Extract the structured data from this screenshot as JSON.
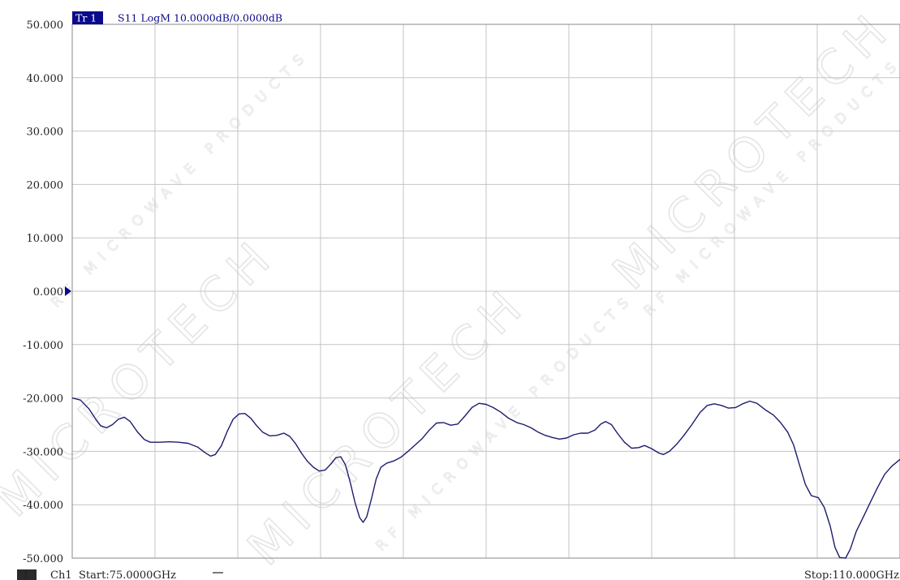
{
  "header": {
    "trace_tag": "Tr 1",
    "trace_info": "S11 LogM 10.0000dB/0.0000dB"
  },
  "footer": {
    "channel_number": "1",
    "channel_label": "Ch1",
    "start_label": "Start:75.0000GHz",
    "stop_label": "Stop:110.000GHz"
  },
  "watermark": {
    "main": "MICROTECH",
    "sub": "RF MICROWAVE PRODUCTS"
  },
  "colors": {
    "trace": "#1c1c6e",
    "grid": "#c4c4c4",
    "header_tag_bg": "#0a0a8c",
    "header_text": "#0a0a8c",
    "reference_marker": "#0a0a8c"
  },
  "chart_data": {
    "type": "line",
    "title": "",
    "xlabel": "",
    "ylabel": "",
    "x_unit": "GHz",
    "xlim": [
      75,
      110
    ],
    "ylim": [
      -50,
      50
    ],
    "y_ticks": [
      50,
      40,
      30,
      20,
      10,
      0,
      -10,
      -20,
      -30,
      -40,
      -50
    ],
    "y_tick_labels": [
      "50.000",
      "40.000",
      "30.000",
      "20.000",
      "10.000",
      "0.000",
      "-10.000",
      "-20.000",
      "-30.000",
      "-40.000",
      "-50.000"
    ],
    "x_divisions": 10,
    "grid": true,
    "reference_level": 0,
    "series": [
      {
        "values": [
          [
            75.0,
            -20.0
          ],
          [
            75.35,
            -20.4
          ],
          [
            75.7,
            -22.0
          ],
          [
            76.0,
            -24.0
          ],
          [
            76.2,
            -25.2
          ],
          [
            76.45,
            -25.6
          ],
          [
            76.7,
            -25.0
          ],
          [
            76.95,
            -24.0
          ],
          [
            77.2,
            -23.6
          ],
          [
            77.45,
            -24.4
          ],
          [
            77.75,
            -26.3
          ],
          [
            78.05,
            -27.8
          ],
          [
            78.3,
            -28.3
          ],
          [
            78.7,
            -28.3
          ],
          [
            79.1,
            -28.2
          ],
          [
            79.5,
            -28.3
          ],
          [
            79.9,
            -28.5
          ],
          [
            80.3,
            -29.2
          ],
          [
            80.6,
            -30.2
          ],
          [
            80.85,
            -30.9
          ],
          [
            81.05,
            -30.6
          ],
          [
            81.3,
            -29.0
          ],
          [
            81.55,
            -26.3
          ],
          [
            81.8,
            -24.0
          ],
          [
            82.05,
            -23.0
          ],
          [
            82.3,
            -22.9
          ],
          [
            82.55,
            -23.8
          ],
          [
            82.8,
            -25.2
          ],
          [
            83.05,
            -26.4
          ],
          [
            83.35,
            -27.1
          ],
          [
            83.65,
            -27.0
          ],
          [
            83.95,
            -26.6
          ],
          [
            84.2,
            -27.2
          ],
          [
            84.45,
            -28.6
          ],
          [
            84.7,
            -30.4
          ],
          [
            84.95,
            -31.9
          ],
          [
            85.2,
            -33.0
          ],
          [
            85.45,
            -33.7
          ],
          [
            85.7,
            -33.5
          ],
          [
            85.95,
            -32.3
          ],
          [
            86.15,
            -31.2
          ],
          [
            86.35,
            -31.0
          ],
          [
            86.55,
            -32.5
          ],
          [
            86.75,
            -35.7
          ],
          [
            86.95,
            -39.5
          ],
          [
            87.15,
            -42.4
          ],
          [
            87.3,
            -43.3
          ],
          [
            87.45,
            -42.3
          ],
          [
            87.65,
            -38.9
          ],
          [
            87.85,
            -35.2
          ],
          [
            88.05,
            -33.0
          ],
          [
            88.3,
            -32.2
          ],
          [
            88.6,
            -31.8
          ],
          [
            88.9,
            -31.1
          ],
          [
            89.2,
            -30.0
          ],
          [
            89.5,
            -28.8
          ],
          [
            89.8,
            -27.6
          ],
          [
            90.1,
            -26.0
          ],
          [
            90.4,
            -24.7
          ],
          [
            90.7,
            -24.6
          ],
          [
            91.0,
            -25.1
          ],
          [
            91.3,
            -24.9
          ],
          [
            91.6,
            -23.4
          ],
          [
            91.9,
            -21.8
          ],
          [
            92.2,
            -21.0
          ],
          [
            92.5,
            -21.2
          ],
          [
            92.8,
            -21.8
          ],
          [
            93.1,
            -22.6
          ],
          [
            93.45,
            -23.8
          ],
          [
            93.8,
            -24.6
          ],
          [
            94.1,
            -25.0
          ],
          [
            94.4,
            -25.6
          ],
          [
            94.7,
            -26.4
          ],
          [
            95.0,
            -27.0
          ],
          [
            95.3,
            -27.4
          ],
          [
            95.6,
            -27.7
          ],
          [
            95.9,
            -27.5
          ],
          [
            96.2,
            -26.9
          ],
          [
            96.5,
            -26.6
          ],
          [
            96.8,
            -26.6
          ],
          [
            97.1,
            -26.0
          ],
          [
            97.35,
            -24.9
          ],
          [
            97.55,
            -24.4
          ],
          [
            97.8,
            -25.0
          ],
          [
            98.05,
            -26.6
          ],
          [
            98.35,
            -28.3
          ],
          [
            98.65,
            -29.4
          ],
          [
            98.95,
            -29.3
          ],
          [
            99.2,
            -28.9
          ],
          [
            99.5,
            -29.5
          ],
          [
            99.8,
            -30.3
          ],
          [
            100.0,
            -30.6
          ],
          [
            100.25,
            -30.0
          ],
          [
            100.55,
            -28.7
          ],
          [
            100.85,
            -27.1
          ],
          [
            101.2,
            -25.0
          ],
          [
            101.55,
            -22.7
          ],
          [
            101.85,
            -21.4
          ],
          [
            102.15,
            -21.1
          ],
          [
            102.45,
            -21.4
          ],
          [
            102.75,
            -21.9
          ],
          [
            103.05,
            -21.8
          ],
          [
            103.35,
            -21.1
          ],
          [
            103.65,
            -20.6
          ],
          [
            103.95,
            -21.0
          ],
          [
            104.3,
            -22.2
          ],
          [
            104.65,
            -23.2
          ],
          [
            104.95,
            -24.6
          ],
          [
            105.25,
            -26.4
          ],
          [
            105.5,
            -28.8
          ],
          [
            105.75,
            -32.5
          ],
          [
            106.0,
            -36.2
          ],
          [
            106.25,
            -38.3
          ],
          [
            106.55,
            -38.7
          ],
          [
            106.8,
            -40.5
          ],
          [
            107.05,
            -44.0
          ],
          [
            107.25,
            -48.0
          ],
          [
            107.45,
            -49.9
          ],
          [
            107.7,
            -50.0
          ],
          [
            107.9,
            -48.3
          ],
          [
            108.15,
            -45.0
          ],
          [
            108.45,
            -42.3
          ],
          [
            108.75,
            -39.5
          ],
          [
            109.05,
            -36.8
          ],
          [
            109.35,
            -34.3
          ],
          [
            109.65,
            -32.8
          ],
          [
            110.0,
            -31.5
          ]
        ]
      }
    ]
  }
}
